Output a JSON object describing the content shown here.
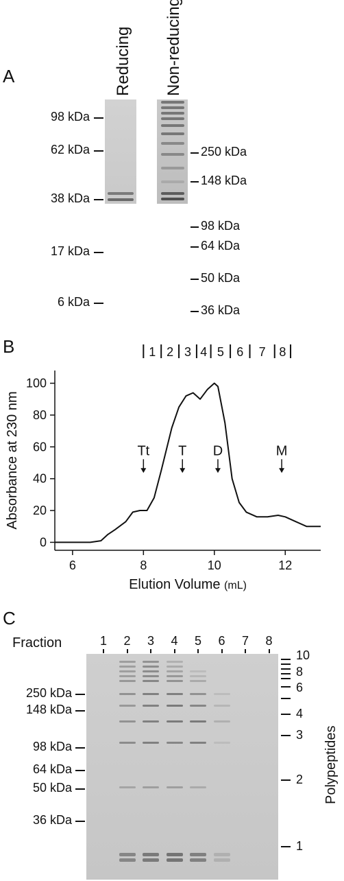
{
  "panels": {
    "a": "A",
    "b": "B",
    "c": "C"
  },
  "panel_a": {
    "lane_headers": [
      "Reducing",
      "Non-reducing"
    ],
    "left_markers": [
      "98 kDa",
      "62 kDa",
      "38 kDa",
      "17 kDa",
      "6 kDa"
    ],
    "right_markers": [
      "250 kDa",
      "148 kDa",
      "98 kDa",
      "64 kDa",
      "50 kDa",
      "36 kDa"
    ]
  },
  "chart_data": {
    "type": "line",
    "xlabel": "Elution Volume",
    "xlabel_unit": "(mL)",
    "ylabel": "Absorbance at 230 nm",
    "xlim": [
      5.5,
      13
    ],
    "ylim": [
      -5,
      108
    ],
    "x_ticks": [
      6,
      8,
      10,
      12
    ],
    "y_ticks": [
      0,
      20,
      40,
      60,
      80,
      100
    ],
    "series": [
      {
        "x": [
          5.5,
          6.0,
          6.5,
          6.8,
          7.0,
          7.2,
          7.5,
          7.7,
          7.9,
          8.1,
          8.3,
          8.5,
          8.8,
          9.0,
          9.2,
          9.4,
          9.6,
          9.8,
          10.0,
          10.1,
          10.3,
          10.5,
          10.7,
          10.9,
          11.2,
          11.5,
          11.8,
          12.0,
          12.3,
          12.6,
          13.0
        ],
        "y": [
          0,
          0,
          0,
          1,
          5,
          8,
          13,
          19,
          20,
          20,
          28,
          45,
          72,
          85,
          92,
          94,
          90,
          96,
          100,
          98,
          75,
          40,
          25,
          19,
          16,
          16,
          17,
          16,
          13,
          10,
          10
        ]
      }
    ],
    "fractions": [
      "1",
      "2",
      "3",
      "4",
      "5",
      "6",
      "7",
      "8"
    ],
    "fraction_boundaries": [
      8.0,
      8.5,
      9.0,
      9.5,
      9.9,
      10.45,
      11.0,
      11.7,
      12.15
    ],
    "annotations": [
      {
        "label": "Tt",
        "x": 8.0
      },
      {
        "label": "T",
        "x": 9.1
      },
      {
        "label": "D",
        "x": 10.1
      },
      {
        "label": "M",
        "x": 11.9
      }
    ]
  },
  "panel_c": {
    "fraction_label": "Fraction",
    "lanes": [
      "1",
      "2",
      "3",
      "4",
      "5",
      "6",
      "7",
      "8"
    ],
    "left_markers": [
      "250 kDa",
      "148 kDa",
      "98 kDa",
      "64 kDa",
      "50 kDa",
      "36 kDa"
    ],
    "polypeptide_label": "Polypeptides",
    "polypeptide_numbers": [
      "10",
      "8",
      "6",
      "4",
      "3",
      "2",
      "1"
    ]
  }
}
